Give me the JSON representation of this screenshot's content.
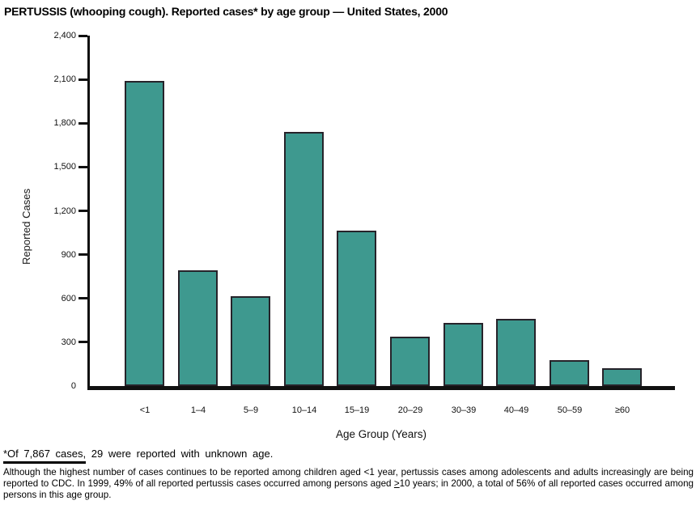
{
  "title": "PERTUSSIS (whooping cough). Reported cases* by age group — United States, 2000",
  "chart_data": {
    "type": "bar",
    "title": "PERTUSSIS (whooping cough). Reported cases* by age group — United States, 2000",
    "xlabel": "Age Group (Years)",
    "ylabel": "Reported Cases",
    "categories": [
      "<1",
      "1–4",
      "5–9",
      "10–14",
      "15–19",
      "20–29",
      "30–39",
      "40–49",
      "50–59",
      "≥60"
    ],
    "values": [
      2090,
      790,
      615,
      1740,
      1065,
      340,
      430,
      460,
      180,
      120
    ],
    "ylim": [
      0,
      2400
    ],
    "ytick_step": 300,
    "ytick_labels": [
      "0",
      "300",
      "600",
      "900",
      "1,200",
      "1,500",
      "1,800",
      "2,100",
      "2,400"
    ],
    "grid": false,
    "legend": "none",
    "bar_fill_color": "#3e998f",
    "bar_border_color": "#26232a",
    "axis_color": "#111111"
  },
  "footnote": {
    "underlined_part": "*Of 7,867 cases,",
    "rest": "29 were reported with unknown age."
  },
  "note": {
    "part1": "Although the highest number of cases continues to be reported among children aged <1 year, pertussis cases among adolescents and adults increasingly are being reported to CDC. In 1999, 49% of all reported pertussis cases occurred among persons aged",
    "geq_symbol": ">",
    "part2": "10 years; in 2000, a total of 56% of all reported cases occurred among persons in this age group."
  }
}
